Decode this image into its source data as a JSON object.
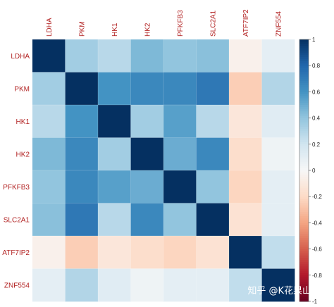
{
  "chart_data": {
    "type": "heatmap",
    "rows": [
      "LDHA",
      "PKM",
      "HK1",
      "HK2",
      "PFKFB3",
      "SLC2A1",
      "ATF7IP2",
      "ZNF554"
    ],
    "columns": [
      "LDHA",
      "PKM",
      "HK1",
      "HK2",
      "PFKFB3",
      "SLC2A1",
      "ATF7IP2",
      "ZNF554"
    ],
    "values": [
      [
        1.0,
        0.35,
        0.28,
        0.45,
        0.4,
        0.42,
        -0.05,
        0.1
      ],
      [
        0.35,
        1.0,
        0.6,
        0.65,
        0.65,
        0.72,
        -0.25,
        0.3
      ],
      [
        0.28,
        0.6,
        1.0,
        0.35,
        0.55,
        0.28,
        -0.12,
        0.12
      ],
      [
        0.45,
        0.65,
        0.35,
        1.0,
        0.5,
        0.65,
        -0.18,
        0.05
      ],
      [
        0.4,
        0.65,
        0.55,
        0.5,
        1.0,
        0.4,
        -0.22,
        0.1
      ],
      [
        0.42,
        0.72,
        0.28,
        0.65,
        0.4,
        1.0,
        -0.15,
        0.1
      ],
      [
        -0.05,
        -0.25,
        -0.12,
        -0.18,
        -0.22,
        -0.15,
        1.0,
        0.25
      ],
      [
        0.1,
        0.3,
        0.12,
        0.05,
        0.1,
        0.1,
        0.25,
        1.0
      ]
    ],
    "colorbar": {
      "min": -1,
      "max": 1,
      "ticks": [
        "1",
        "0.8",
        "0.6",
        "0.4",
        "0.2",
        "0",
        "-0.2",
        "-0.4",
        "-0.6",
        "-0.8",
        "-1"
      ]
    },
    "colors": {
      "positive": "#053061",
      "neutral": "#ffffff",
      "negative": "#67001f",
      "label": "#b22222"
    }
  },
  "watermark": "知乎 @K花果山数据"
}
